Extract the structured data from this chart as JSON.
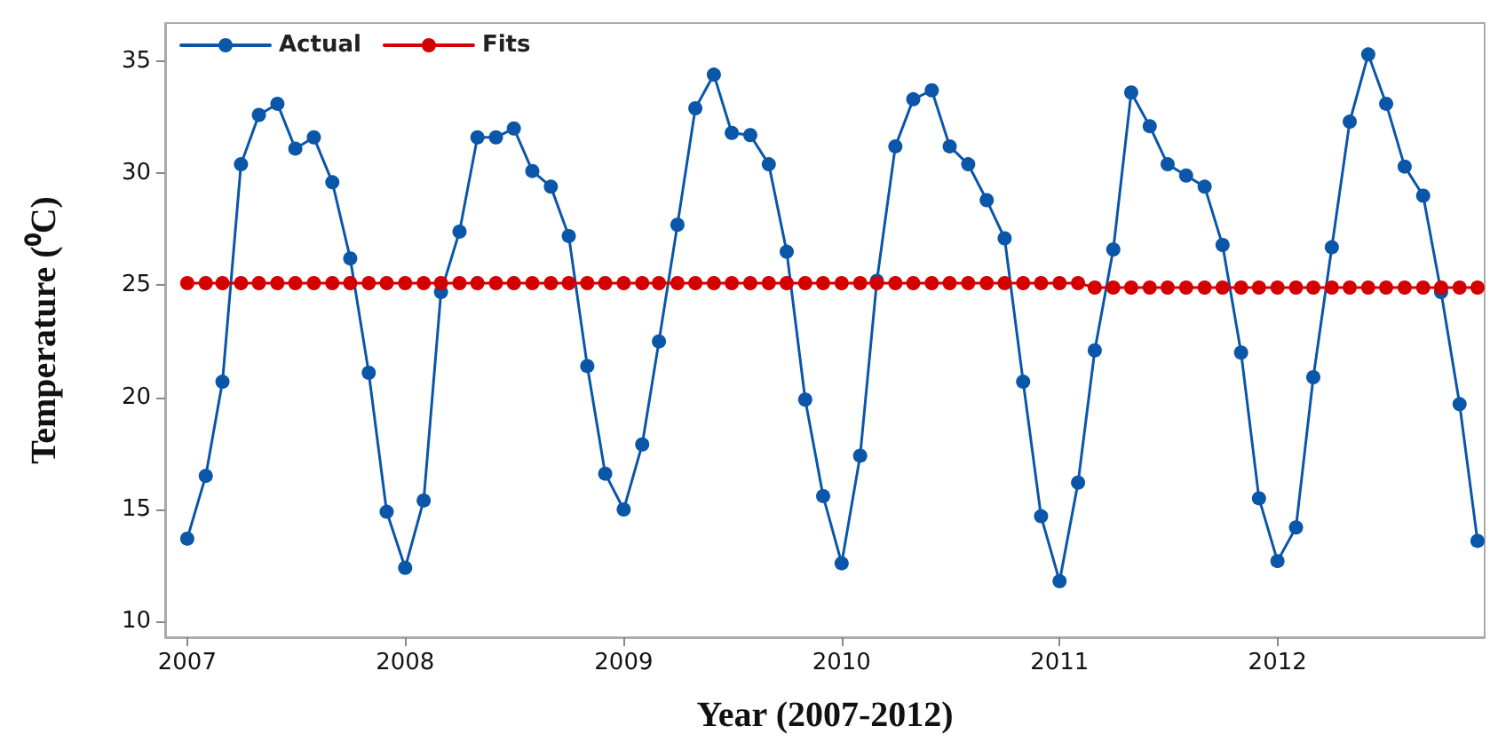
{
  "chart_data": {
    "type": "line",
    "xlabel": "Year (2007-2012)",
    "ylabel": "Temperature (⁰C)",
    "x": [
      "2007-01",
      "2007-02",
      "2007-03",
      "2007-04",
      "2007-05",
      "2007-06",
      "2007-07",
      "2007-08",
      "2007-09",
      "2007-10",
      "2007-11",
      "2007-12",
      "2008-01",
      "2008-02",
      "2008-03",
      "2008-04",
      "2008-05",
      "2008-06",
      "2008-07",
      "2008-08",
      "2008-09",
      "2008-10",
      "2008-11",
      "2008-12",
      "2009-01",
      "2009-02",
      "2009-03",
      "2009-04",
      "2009-05",
      "2009-06",
      "2009-07",
      "2009-08",
      "2009-09",
      "2009-10",
      "2009-11",
      "2009-12",
      "2010-01",
      "2010-02",
      "2010-03",
      "2010-04",
      "2010-05",
      "2010-06",
      "2010-07",
      "2010-08",
      "2010-09",
      "2010-10",
      "2010-11",
      "2010-12",
      "2011-01",
      "2011-02",
      "2011-03",
      "2011-04",
      "2011-05",
      "2011-06",
      "2011-07",
      "2011-08",
      "2011-09",
      "2011-10",
      "2011-11",
      "2011-12",
      "2012-01",
      "2012-02",
      "2012-03",
      "2012-04",
      "2012-05",
      "2012-06",
      "2012-07",
      "2012-08",
      "2012-09",
      "2012-10",
      "2012-11",
      "2012-12"
    ],
    "series": [
      {
        "name": "Actual",
        "color": "#0a56a8",
        "values": [
          13.7,
          16.5,
          20.7,
          30.4,
          32.6,
          33.1,
          31.1,
          31.6,
          29.6,
          26.2,
          21.1,
          14.9,
          12.4,
          15.4,
          24.7,
          27.4,
          31.6,
          31.6,
          32.0,
          30.1,
          29.4,
          27.2,
          21.4,
          16.6,
          15.0,
          17.9,
          22.5,
          27.7,
          32.9,
          34.4,
          31.8,
          31.7,
          30.4,
          26.5,
          19.9,
          15.6,
          12.6,
          17.4,
          25.2,
          31.2,
          33.3,
          33.7,
          31.2,
          30.4,
          28.8,
          27.1,
          20.7,
          14.7,
          11.8,
          16.2,
          22.1,
          26.6,
          33.6,
          32.1,
          30.4,
          29.9,
          29.4,
          26.8,
          22.0,
          15.5,
          12.7,
          14.2,
          20.9,
          26.7,
          32.3,
          35.3,
          33.1,
          30.3,
          29.0,
          24.7,
          19.7,
          13.6
        ]
      },
      {
        "name": "Fits",
        "color": "#d40000",
        "values": [
          25.1,
          25.1,
          25.1,
          25.1,
          25.1,
          25.1,
          25.1,
          25.1,
          25.1,
          25.1,
          25.1,
          25.1,
          25.1,
          25.1,
          25.1,
          25.1,
          25.1,
          25.1,
          25.1,
          25.1,
          25.1,
          25.1,
          25.1,
          25.1,
          25.1,
          25.1,
          25.1,
          25.1,
          25.1,
          25.1,
          25.1,
          25.1,
          25.1,
          25.1,
          25.1,
          25.1,
          25.1,
          25.1,
          25.1,
          25.1,
          25.1,
          25.1,
          25.1,
          25.1,
          25.1,
          25.1,
          25.1,
          25.1,
          25.1,
          25.1,
          24.9,
          24.9,
          24.9,
          24.9,
          24.9,
          24.9,
          24.9,
          24.9,
          24.9,
          24.9,
          24.9,
          24.9,
          24.9,
          24.9,
          24.9,
          24.9,
          24.9,
          24.9,
          24.9,
          24.9,
          24.9,
          24.9
        ]
      }
    ],
    "xlim": [
      "2006-11-25",
      "2012-12-13"
    ],
    "xticks": [
      "2007",
      "2008",
      "2009",
      "2010",
      "2011",
      "2012"
    ],
    "ylim": [
      9.3,
      36.7
    ],
    "yticks": [
      10,
      15,
      20,
      25,
      30,
      35
    ],
    "grid": false,
    "legend": "top left",
    "marker": "circle",
    "line_style": "solid"
  }
}
